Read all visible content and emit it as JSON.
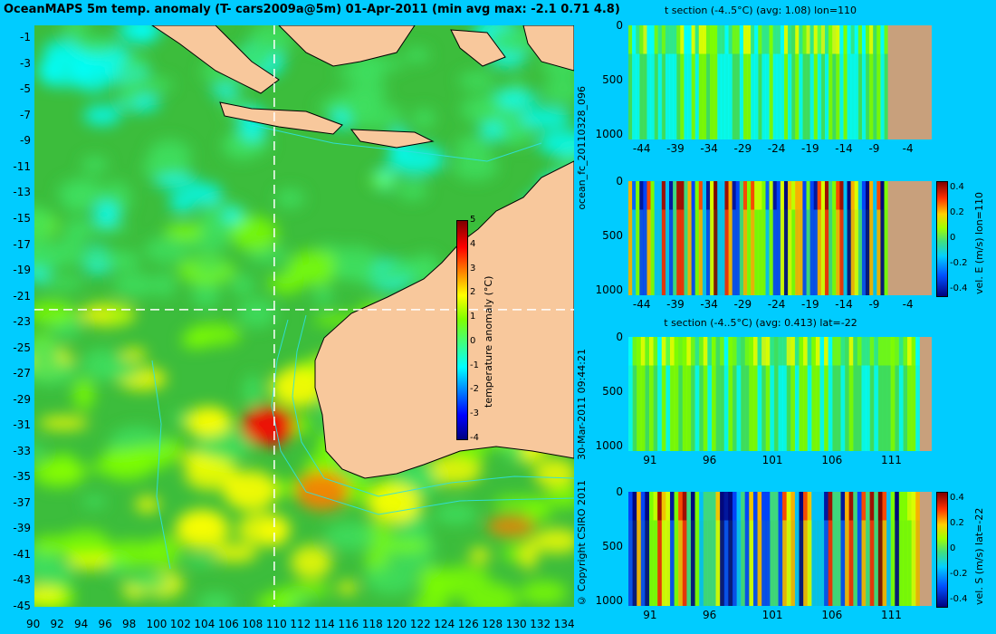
{
  "title": "OceanMAPS 5m temp. anomaly (T- cars2009a@5m) 01-Apr-2011 (min avg max: -2.1 0.71 4.8)",
  "side_labels": {
    "run": "ocean_fc_20110328_096",
    "timestamp": "30-Mar-2011 09:44:21",
    "copyright": "© Copyright CSIRO 2011"
  },
  "colors": {
    "background": "#00ccff",
    "land": "#f8c89c",
    "section_land": "#c8a07c",
    "ocean_base": "#3cbd3c",
    "contour": "#30e0e0",
    "crosshair": "#ffffff"
  },
  "chart_data": [
    {
      "type": "heatmap",
      "name": "map",
      "title": "OceanMAPS 5m temp. anomaly (T- cars2009a@5m) 01-Apr-2011 (min avg max: -2.1 0.71 4.8)",
      "x_ticks": [
        "90",
        "92",
        "94",
        "96",
        "98",
        "100",
        "102",
        "104",
        "106",
        "108",
        "110",
        "112",
        "114",
        "116",
        "118",
        "120",
        "122",
        "124",
        "126",
        "128",
        "130",
        "132",
        "134"
      ],
      "y_ticks": [
        "-1",
        "-3",
        "-5",
        "-7",
        "-9",
        "-11",
        "-13",
        "-15",
        "-17",
        "-19",
        "-21",
        "-23",
        "-25",
        "-27",
        "-29",
        "-31",
        "-33",
        "-35",
        "-37",
        "-39",
        "-41",
        "-43",
        "-45"
      ],
      "xlim": [
        90,
        135
      ],
      "ylim": [
        -45,
        0
      ],
      "crosshair": {
        "lon": 110,
        "lat": -22
      },
      "hotspots": [
        {
          "lon": 109.5,
          "lat": -31,
          "value": 4.8
        },
        {
          "lon": 114,
          "lat": -36,
          "value": 3
        },
        {
          "lon": 112,
          "lat": -28,
          "value": 2.5
        },
        {
          "lon": 120,
          "lat": -37,
          "value": 2.5
        },
        {
          "lon": 104,
          "lat": -39,
          "value": 2
        },
        {
          "lon": 108,
          "lat": -36,
          "value": 2.5
        }
      ],
      "colorbar": {
        "label": "temperature anomaly (°C)",
        "ticks": [
          "5",
          "4",
          "3",
          "2",
          "1",
          "0",
          "-1",
          "-2",
          "-3",
          "-4"
        ],
        "range": [
          -4,
          5
        ]
      }
    },
    {
      "type": "heatmap",
      "name": "t_section_lon110",
      "title": "t section (-4..5°C) (avg: 1.08) lon=110",
      "x_ticks": [
        "-44",
        "-39",
        "-34",
        "-29",
        "-24",
        "-19",
        "-14",
        "-9",
        "-4"
      ],
      "y_ticks": [
        "0",
        "500",
        "1000"
      ],
      "xlim": [
        -46,
        -1
      ],
      "ylim": [
        1050,
        0
      ],
      "land_from": -7.5
    },
    {
      "type": "heatmap",
      "name": "velE_section_lon110",
      "title": "",
      "x_ticks": [
        "-44",
        "-39",
        "-34",
        "-29",
        "-24",
        "-19",
        "-14",
        "-9",
        "-4"
      ],
      "y_ticks": [
        "0",
        "500",
        "1000"
      ],
      "xlim": [
        -46,
        -1
      ],
      "ylim": [
        1050,
        0
      ],
      "land_from": -7.5,
      "colorbar": {
        "label": "vel. E (m/s) lon=110",
        "ticks": [
          "0.4",
          "0.2",
          "0",
          "-0.2",
          "-0.4"
        ],
        "range": [
          -0.45,
          0.45
        ]
      }
    },
    {
      "type": "heatmap",
      "name": "t_section_lat-22",
      "title": "t section (-4..5°C) (avg: 0.413) lat=-22",
      "x_ticks": [
        "91",
        "96",
        "101",
        "106",
        "111"
      ],
      "y_ticks": [
        "0",
        "500",
        "1000"
      ],
      "xlim": [
        89,
        114.5
      ],
      "ylim": [
        1050,
        0
      ],
      "land_from": 113.5
    },
    {
      "type": "heatmap",
      "name": "velS_section_lat-22",
      "title": "",
      "x_ticks": [
        "91",
        "96",
        "101",
        "106",
        "111"
      ],
      "y_ticks": [
        "0",
        "500",
        "1000"
      ],
      "xlim": [
        89,
        114.5
      ],
      "ylim": [
        1050,
        0
      ],
      "land_from": 113.5,
      "colorbar": {
        "label": "vel. S (m/s) lat=-22",
        "ticks": [
          "0.4",
          "0.2",
          "0",
          "-0.2",
          "-0.4"
        ],
        "range": [
          -0.45,
          0.45
        ]
      }
    }
  ]
}
